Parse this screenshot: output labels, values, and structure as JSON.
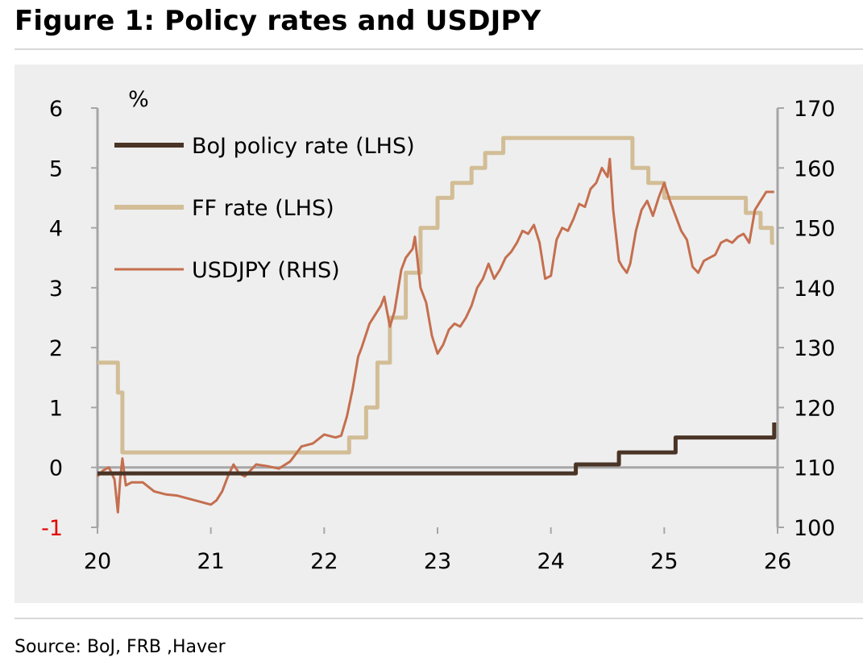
{
  "title": "Figure 1: Policy rates and USDJPY",
  "source": "Source: BoJ, FRB ,Haver",
  "chart_data": {
    "type": "line",
    "title": "Figure 1: Policy rates and USDJPY",
    "ylabel_left": "%",
    "x_ticks": [
      "20",
      "21",
      "22",
      "23",
      "24",
      "25",
      "26"
    ],
    "x_range": [
      2020,
      2026
    ],
    "y_left_range": [
      -1,
      6
    ],
    "y_left_ticks": [
      "-1",
      "0",
      "1",
      "2",
      "3",
      "4",
      "5",
      "6"
    ],
    "y_right_range": [
      100,
      170
    ],
    "y_right_ticks": [
      "100",
      "110",
      "120",
      "130",
      "140",
      "150",
      "160",
      "170"
    ],
    "colors": {
      "boj": "#4a3426",
      "ff": "#d2bd96",
      "usdjpy": "#c56f4f",
      "negative_tick": "#e00000",
      "axis": "#a6a6a6"
    },
    "legend": [
      {
        "label": "BoJ policy rate (LHS)",
        "series": "boj"
      },
      {
        "label": "FF rate (LHS)",
        "series": "ff"
      },
      {
        "label": "USDJPY (RHS)",
        "series": "usdjpy"
      }
    ],
    "series": [
      {
        "name": "BoJ policy rate (LHS)",
        "axis": "left",
        "step": true,
        "x": [
          2020.0,
          2024.22,
          2024.6,
          2025.1,
          2025.97,
          2025.97
        ],
        "values": [
          -0.1,
          0.05,
          0.25,
          0.5,
          0.5,
          0.75
        ]
      },
      {
        "name": "FF rate (LHS)",
        "axis": "left",
        "step": true,
        "x": [
          2020.0,
          2020.18,
          2020.22,
          2022.22,
          2022.37,
          2022.47,
          2022.58,
          2022.72,
          2022.85,
          2023.0,
          2023.13,
          2023.3,
          2023.42,
          2023.58,
          2024.72,
          2024.86,
          2025.0,
          2025.72,
          2025.85,
          2025.95,
          2025.97
        ],
        "values": [
          1.75,
          1.25,
          0.25,
          0.5,
          1.0,
          1.75,
          2.5,
          3.25,
          4.0,
          4.5,
          4.75,
          5.0,
          5.25,
          5.5,
          5.0,
          4.75,
          4.5,
          4.25,
          4.0,
          3.75,
          3.75
        ]
      },
      {
        "name": "USDJPY (RHS)",
        "axis": "right",
        "x": [
          2020.0,
          2020.05,
          2020.1,
          2020.15,
          2020.18,
          2020.2,
          2020.22,
          2020.25,
          2020.3,
          2020.4,
          2020.5,
          2020.6,
          2020.7,
          2020.8,
          2020.9,
          2021.0,
          2021.05,
          2021.1,
          2021.15,
          2021.2,
          2021.25,
          2021.3,
          2021.4,
          2021.5,
          2021.6,
          2021.7,
          2021.8,
          2021.9,
          2022.0,
          2022.1,
          2022.15,
          2022.2,
          2022.25,
          2022.3,
          2022.33,
          2022.4,
          2022.45,
          2022.5,
          2022.53,
          2022.58,
          2022.62,
          2022.68,
          2022.72,
          2022.78,
          2022.8,
          2022.85,
          2022.9,
          2022.95,
          2023.0,
          2023.05,
          2023.1,
          2023.15,
          2023.2,
          2023.25,
          2023.3,
          2023.35,
          2023.4,
          2023.45,
          2023.5,
          2023.55,
          2023.6,
          2023.65,
          2023.7,
          2023.75,
          2023.8,
          2023.85,
          2023.9,
          2023.95,
          2024.0,
          2024.05,
          2024.1,
          2024.15,
          2024.2,
          2024.25,
          2024.3,
          2024.35,
          2024.4,
          2024.45,
          2024.5,
          2024.52,
          2024.55,
          2024.6,
          2024.63,
          2024.67,
          2024.7,
          2024.75,
          2024.8,
          2024.85,
          2024.9,
          2024.95,
          2025.0,
          2025.05,
          2025.1,
          2025.15,
          2025.2,
          2025.25,
          2025.3,
          2025.35,
          2025.4,
          2025.45,
          2025.5,
          2025.55,
          2025.6,
          2025.65,
          2025.7,
          2025.75,
          2025.8,
          2025.85,
          2025.9,
          2025.95,
          2025.97
        ],
        "values": [
          108.5,
          109.5,
          110.0,
          108.0,
          102.5,
          108.0,
          111.5,
          107.0,
          107.5,
          107.5,
          106.0,
          105.5,
          105.3,
          104.8,
          104.3,
          103.8,
          104.5,
          106.0,
          108.5,
          110.5,
          109.0,
          108.5,
          110.5,
          110.2,
          109.8,
          111.0,
          113.5,
          114.0,
          115.5,
          115.0,
          115.3,
          118.5,
          123.0,
          128.5,
          130.0,
          134.0,
          135.5,
          137.0,
          138.5,
          133.5,
          136.0,
          143.0,
          145.0,
          146.5,
          148.5,
          140.0,
          137.5,
          132.0,
          129.0,
          130.5,
          133.0,
          134.0,
          133.5,
          135.0,
          137.0,
          140.0,
          141.5,
          144.0,
          141.5,
          143.0,
          145.0,
          146.0,
          147.5,
          149.5,
          149.0,
          150.5,
          147.5,
          141.5,
          142.0,
          148.0,
          150.0,
          149.5,
          151.5,
          154.0,
          153.5,
          156.5,
          157.5,
          160.0,
          158.5,
          161.5,
          153.0,
          144.5,
          143.5,
          142.5,
          144.0,
          149.5,
          153.0,
          154.5,
          152.0,
          155.0,
          157.5,
          154.5,
          152.0,
          149.5,
          148.0,
          143.5,
          142.5,
          144.5,
          145.0,
          145.5,
          147.5,
          148.0,
          147.5,
          148.5,
          149.0,
          147.5,
          153.0,
          154.5,
          156.0,
          156.0,
          156.0
        ]
      }
    ]
  }
}
